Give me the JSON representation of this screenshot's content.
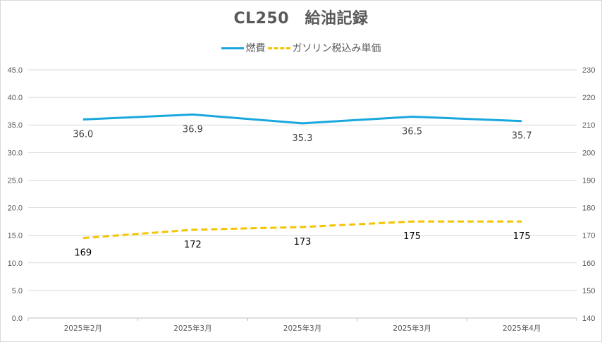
{
  "chart_data": {
    "type": "line",
    "title": "CL250　給油記録",
    "categories": [
      "2025年2月",
      "2025年3月",
      "2025年3月",
      "2025年3月",
      "2025年4月"
    ],
    "series": [
      {
        "name": "燃費",
        "axis": "left",
        "style": "solid",
        "color": "#1aa7dd",
        "values": [
          36.0,
          36.9,
          35.3,
          36.5,
          35.7
        ],
        "labels": [
          "36.0",
          "36.9",
          "35.3",
          "36.5",
          "35.7"
        ],
        "label_color": "#404040"
      },
      {
        "name": "ガソリン税込み単価",
        "axis": "right",
        "style": "dashed",
        "color": "#f5c400",
        "values": [
          169,
          172,
          173,
          175,
          175
        ],
        "labels": [
          "169",
          "172",
          "173",
          "175",
          "175"
        ],
        "label_color": "#000000"
      }
    ],
    "y_left": {
      "min": 0,
      "max": 45,
      "step": 5,
      "ticks": [
        "0.0",
        "5.0",
        "10.0",
        "15.0",
        "20.0",
        "25.0",
        "30.0",
        "35.0",
        "40.0",
        "45.0"
      ]
    },
    "y_right": {
      "min": 140,
      "max": 230,
      "step": 10,
      "ticks": [
        "140",
        "150",
        "160",
        "170",
        "180",
        "190",
        "200",
        "210",
        "220",
        "230"
      ]
    },
    "grid": true,
    "legend": "top-center",
    "gridline_color": "#d9d9d9",
    "axis_text_color": "#595959"
  }
}
